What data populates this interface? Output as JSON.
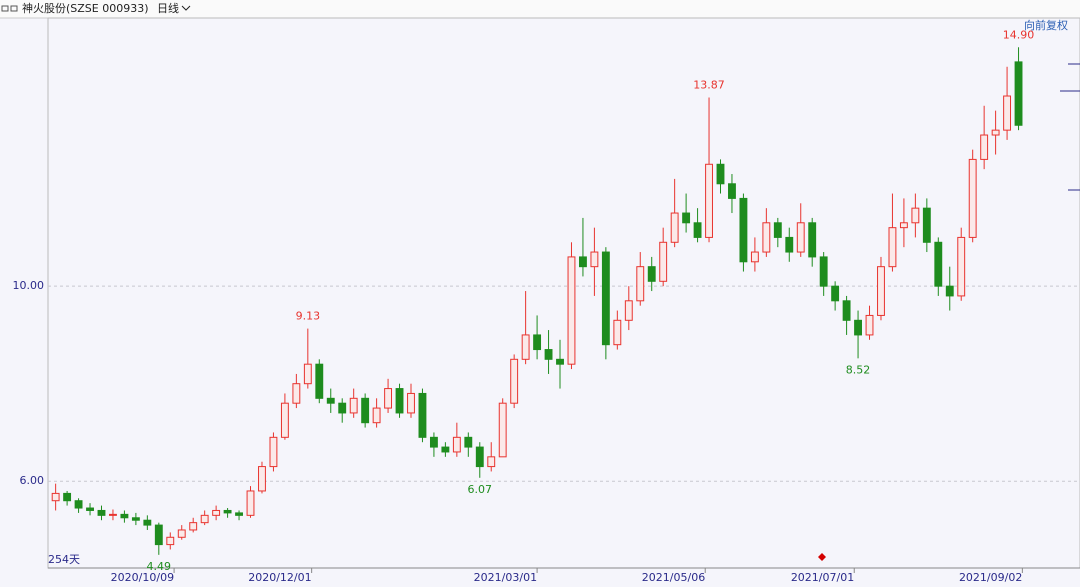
{
  "chart_data": {
    "type": "candlestick",
    "title": "神火股份(SZSE 000933)",
    "period": "日线",
    "adjustment": "向前复权",
    "span_label": "254天",
    "up_color": "#e8332e",
    "down_color": "#1e8c1e",
    "x": [
      0,
      3,
      6,
      9,
      12,
      15,
      18,
      21,
      24,
      27,
      30,
      33,
      36,
      39,
      42,
      45,
      48,
      51,
      54,
      57,
      60,
      63,
      66,
      69,
      72,
      75,
      78,
      81,
      84,
      87,
      90,
      93,
      96,
      99,
      102,
      105,
      108,
      111,
      114,
      117,
      120,
      123,
      126,
      129,
      132,
      135,
      138,
      141,
      144,
      147,
      150,
      153,
      156,
      159,
      162,
      165,
      168,
      171,
      174,
      177,
      180,
      183,
      186,
      189,
      192,
      195,
      198,
      201,
      204,
      207,
      210,
      213,
      216,
      219,
      222,
      225,
      228,
      231,
      234,
      237,
      240,
      243,
      246,
      249,
      252
    ],
    "open": [
      5.6,
      5.75,
      5.6,
      5.45,
      5.4,
      5.3,
      5.32,
      5.25,
      5.2,
      5.1,
      4.7,
      4.85,
      5.0,
      5.15,
      5.3,
      5.4,
      5.35,
      5.3,
      5.8,
      6.3,
      6.9,
      7.6,
      8.0,
      8.4,
      7.7,
      7.6,
      7.4,
      7.7,
      7.2,
      7.5,
      7.9,
      7.4,
      7.8,
      6.9,
      6.7,
      6.6,
      6.9,
      6.7,
      6.3,
      6.5,
      7.6,
      8.5,
      9.0,
      8.7,
      8.5,
      8.4,
      10.6,
      10.4,
      10.7,
      8.8,
      9.3,
      9.7,
      10.4,
      10.1,
      10.9,
      11.5,
      11.3,
      11.0,
      12.5,
      12.1,
      11.8,
      10.5,
      10.7,
      11.3,
      11.0,
      10.7,
      11.3,
      10.6,
      10.0,
      9.7,
      9.3,
      9.0,
      9.4,
      10.4,
      11.2,
      11.3,
      11.6,
      10.9,
      10.0,
      9.8,
      11.0,
      12.6,
      13.1,
      13.2,
      14.6
    ],
    "high": [
      5.95,
      5.8,
      5.65,
      5.55,
      5.5,
      5.42,
      5.4,
      5.35,
      5.3,
      5.15,
      4.95,
      5.1,
      5.25,
      5.4,
      5.5,
      5.45,
      5.4,
      5.9,
      6.4,
      7.0,
      7.8,
      8.2,
      9.13,
      8.5,
      7.9,
      7.7,
      7.9,
      7.8,
      7.7,
      8.1,
      8.0,
      8.0,
      7.9,
      7.0,
      6.8,
      7.2,
      7.0,
      6.8,
      6.8,
      7.7,
      8.6,
      9.9,
      9.4,
      9.1,
      8.9,
      10.9,
      11.4,
      11.2,
      10.8,
      9.5,
      10.0,
      10.7,
      10.6,
      11.2,
      12.2,
      11.9,
      11.6,
      13.87,
      12.6,
      12.3,
      11.9,
      11.0,
      11.6,
      11.4,
      11.2,
      11.7,
      11.4,
      10.7,
      10.1,
      9.8,
      9.5,
      9.6,
      10.6,
      11.9,
      11.8,
      11.9,
      11.8,
      11.0,
      10.4,
      11.2,
      12.8,
      13.7,
      13.6,
      14.5,
      14.9
    ],
    "low": [
      5.4,
      5.5,
      5.35,
      5.3,
      5.2,
      5.2,
      5.15,
      5.1,
      5.0,
      4.49,
      4.6,
      4.8,
      4.95,
      5.1,
      5.2,
      5.25,
      5.2,
      5.25,
      5.75,
      6.2,
      6.85,
      7.5,
      7.9,
      7.6,
      7.4,
      7.2,
      7.3,
      7.1,
      7.1,
      7.4,
      7.3,
      7.3,
      6.8,
      6.5,
      6.5,
      6.5,
      6.5,
      6.07,
      6.2,
      6.5,
      7.5,
      8.4,
      8.5,
      8.2,
      7.9,
      8.3,
      10.2,
      9.8,
      8.5,
      8.7,
      9.1,
      9.6,
      9.9,
      10.0,
      10.8,
      11.1,
      10.9,
      10.9,
      11.9,
      11.5,
      10.3,
      10.3,
      10.6,
      10.8,
      10.5,
      10.6,
      10.4,
      9.8,
      9.5,
      9.0,
      8.52,
      8.9,
      9.3,
      10.3,
      10.8,
      11.0,
      10.7,
      9.8,
      9.5,
      9.7,
      10.9,
      12.4,
      12.7,
      13.0,
      13.2
    ],
    "close": [
      5.75,
      5.6,
      5.45,
      5.4,
      5.3,
      5.32,
      5.25,
      5.2,
      5.1,
      4.7,
      4.85,
      5.0,
      5.15,
      5.3,
      5.4,
      5.35,
      5.3,
      5.8,
      6.3,
      6.9,
      7.6,
      8.0,
      8.4,
      7.7,
      7.6,
      7.4,
      7.7,
      7.2,
      7.5,
      7.9,
      7.4,
      7.8,
      6.9,
      6.7,
      6.6,
      6.9,
      6.7,
      6.3,
      6.5,
      7.6,
      8.5,
      9.0,
      8.7,
      8.5,
      8.4,
      10.6,
      10.4,
      10.7,
      8.8,
      9.3,
      9.7,
      10.4,
      10.1,
      10.9,
      11.5,
      11.3,
      11.0,
      12.5,
      12.1,
      11.8,
      10.5,
      10.7,
      11.3,
      11.0,
      10.7,
      11.3,
      10.6,
      10.0,
      9.7,
      9.3,
      9.0,
      9.4,
      10.4,
      11.2,
      11.3,
      11.6,
      10.9,
      10.0,
      9.8,
      11.0,
      12.6,
      13.1,
      13.2,
      13.9,
      13.3
    ],
    "annotations": [
      {
        "label": "4.49",
        "value": 4.49,
        "x": 27,
        "color": "#1e8c1e"
      },
      {
        "label": "9.13",
        "value": 9.13,
        "x": 66,
        "color": "#e8332e"
      },
      {
        "label": "6.07",
        "value": 6.07,
        "x": 111,
        "color": "#1e8c1e"
      },
      {
        "label": "13.87",
        "value": 13.87,
        "x": 171,
        "color": "#e8332e"
      },
      {
        "label": "8.52",
        "value": 8.52,
        "x": 210,
        "color": "#1e8c1e"
      },
      {
        "label": "14.90",
        "value": 14.9,
        "x": 252,
        "color": "#e8332e"
      }
    ],
    "xlim": [
      -2,
      255
    ],
    "xticks": [
      {
        "value": 31,
        "label": "2020/10/09"
      },
      {
        "value": 67,
        "label": "2020/12/01"
      },
      {
        "value": 126,
        "label": "2021/03/01"
      },
      {
        "value": 170,
        "label": "2021/05/06"
      },
      {
        "value": 209,
        "label": "2021/07/01"
      },
      {
        "value": 253,
        "label": "2021/09/02"
      }
    ],
    "ylim": [
      4.22,
      15.5
    ],
    "yticks": [
      {
        "value": 6,
        "label": "6.00"
      },
      {
        "value": 10,
        "label": "10.00"
      }
    ],
    "grid": true
  }
}
